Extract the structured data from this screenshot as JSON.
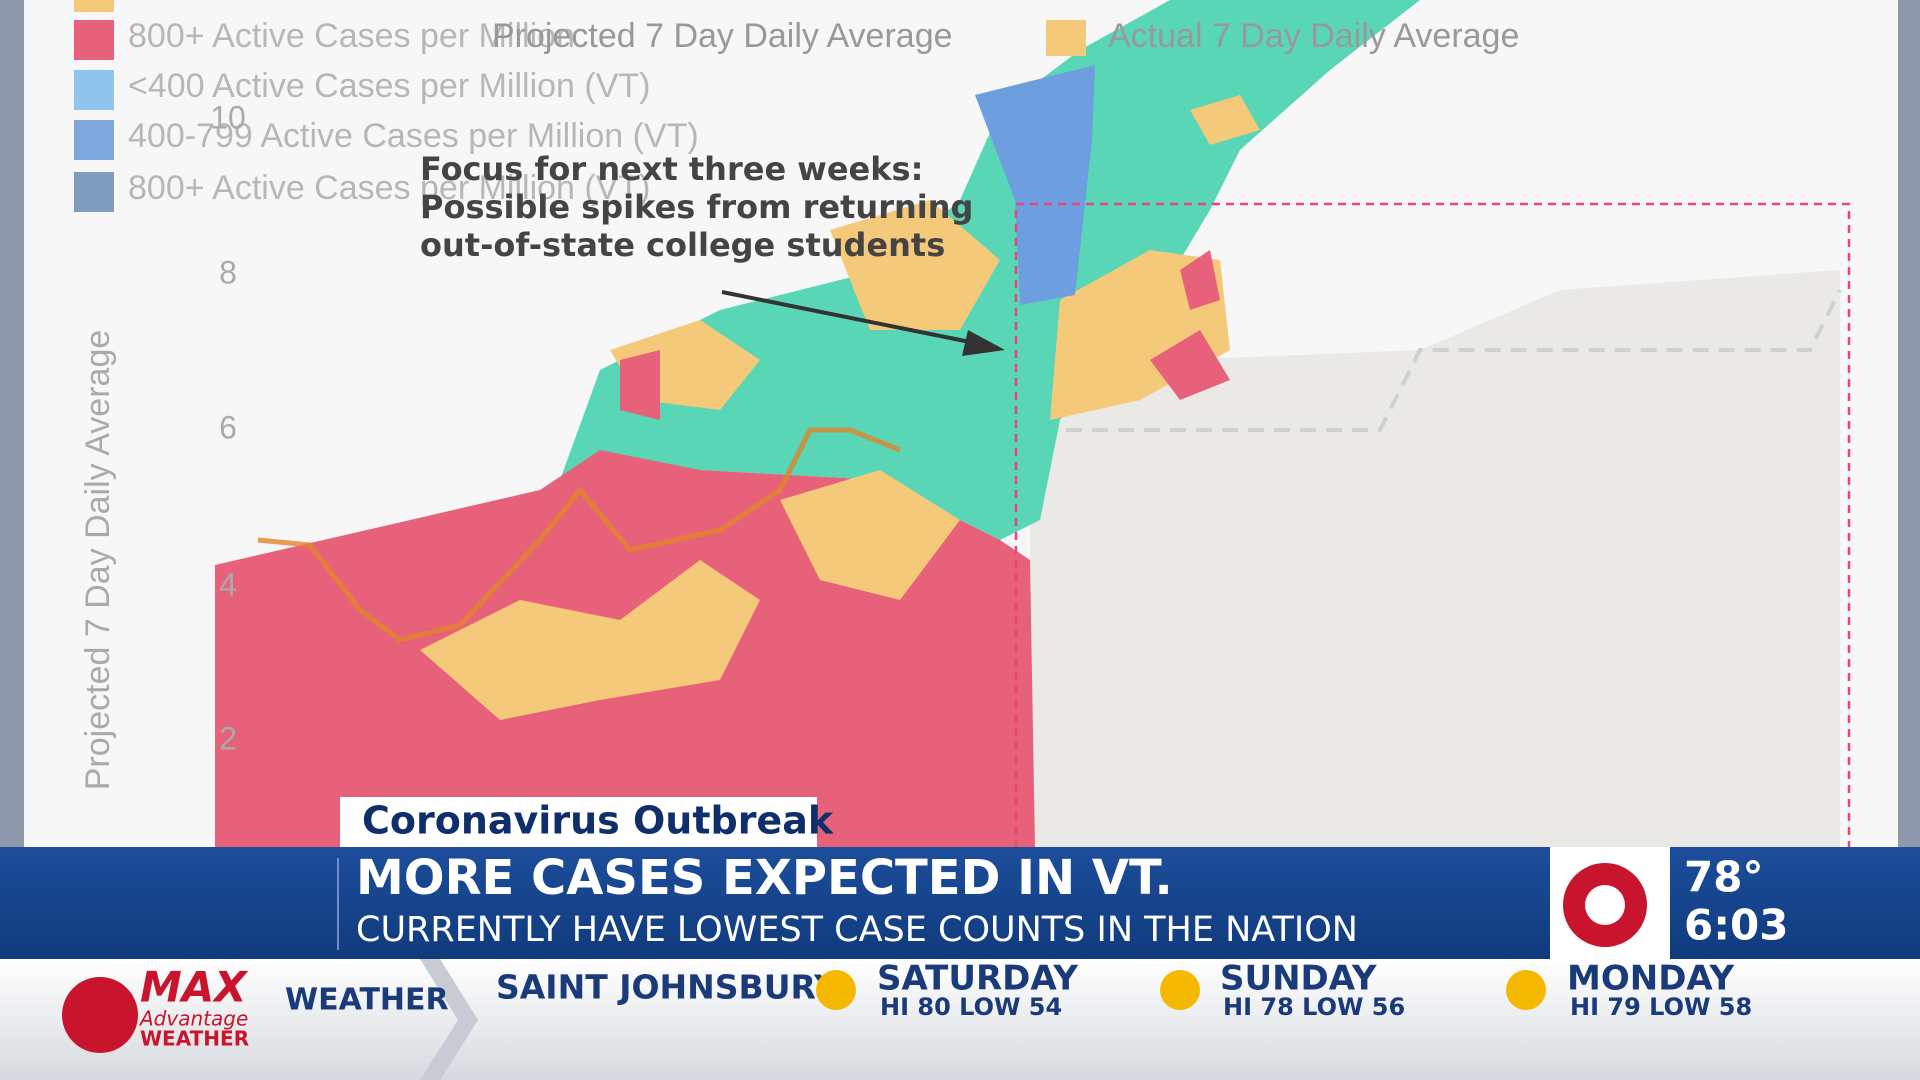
{
  "legend": {
    "items": [
      "800+ Active Cases per Million",
      "Projected 7 Day Daily Average",
      "Actual 7 Day Daily Average",
      "<400 Active Cases per Million (VT)",
      "400-799 Active Cases per Million (VT)",
      "800+ Active Cases per Million (VT)"
    ]
  },
  "axis": {
    "label": "Projected 7 Day Daily Average",
    "ticks": [
      10,
      8,
      6,
      4,
      2
    ]
  },
  "annotation": {
    "lines": [
      "Focus for next three weeks:",
      "Possible spikes from returning",
      "out-of-state college students"
    ]
  },
  "banner": {
    "tag": "Coronavirus Outbreak",
    "headline": "MORE CASES EXPECTED IN VT.",
    "subhead": "CURRENTLY HAVE LOWEST CASE COUNTS IN THE NATION"
  },
  "station": {
    "temperature": "78°",
    "time": "6:03"
  },
  "ticker": {
    "brand": "MAX",
    "brand_sub": "Advantage",
    "brand_tag": "WEATHER",
    "label": "WEATHER",
    "location": "SAINT JOHNSBURY",
    "days": [
      {
        "day": "SATURDAY",
        "forecast": "HI 80 LOW 54"
      },
      {
        "day": "SUNDAY",
        "forecast": "HI 78 LOW 56"
      },
      {
        "day": "MONDAY",
        "forecast": "HI 79 LOW 58"
      }
    ]
  }
}
